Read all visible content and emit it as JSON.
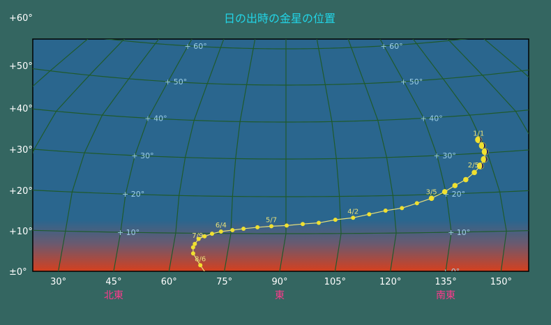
{
  "chart_data": {
    "type": "scatter",
    "title": "日の出時の金星の位置",
    "xlim": [
      24,
      158
    ],
    "ylim": [
      0,
      57
    ],
    "y_ticks": [
      "+60°",
      "+50°",
      "+40°",
      "+30°",
      "+20°",
      "+10°",
      "±0°"
    ],
    "x_ticks": [
      "30°",
      "45°",
      "60°",
      "75°",
      "90°",
      "105°",
      "120°",
      "135°",
      "150°"
    ],
    "directions": [
      {
        "label": "北東",
        "az": 45
      },
      {
        "label": "東",
        "az": 90
      },
      {
        "label": "南東",
        "az": 135
      }
    ],
    "grid_altitude_labels": [
      "+ 60°",
      "+ 50°",
      "+ 40°",
      "+ 30°",
      "+ 20°",
      "+ 10°",
      "+ 0°"
    ],
    "grid": true,
    "series": [
      {
        "points": [
          {
            "az": 149.2,
            "alt": 33.5
          },
          {
            "az": 149.5,
            "alt": 31.9
          },
          {
            "az": 149.5,
            "alt": 30.3
          },
          {
            "az": 148.5,
            "alt": 28.4
          },
          {
            "az": 146.8,
            "alt": 26.8
          },
          {
            "az": 144.5,
            "alt": 25.2
          },
          {
            "az": 141.5,
            "alt": 23.5
          },
          {
            "az": 138.0,
            "alt": 22.1
          },
          {
            "az": 134.7,
            "alt": 20.6
          },
          {
            "az": 130.7,
            "alt": 19.0
          },
          {
            "az": 126.5,
            "alt": 17.8
          },
          {
            "az": 122.2,
            "alt": 16.6
          },
          {
            "az": 117.6,
            "alt": 16.0
          },
          {
            "az": 113.0,
            "alt": 15.1
          },
          {
            "az": 108.5,
            "alt": 14.2
          },
          {
            "az": 103.6,
            "alt": 13.7
          },
          {
            "az": 99.0,
            "alt": 12.9
          },
          {
            "az": 94.6,
            "alt": 12.6
          },
          {
            "az": 90.2,
            "alt": 12.2
          },
          {
            "az": 86.0,
            "alt": 12.0
          },
          {
            "az": 82.2,
            "alt": 11.7
          },
          {
            "az": 78.4,
            "alt": 11.3
          },
          {
            "az": 75.4,
            "alt": 10.9
          },
          {
            "az": 72.3,
            "alt": 10.5
          },
          {
            "az": 69.9,
            "alt": 9.9
          },
          {
            "az": 68.0,
            "alt": 9.2
          },
          {
            "az": 66.5,
            "alt": 8.5
          },
          {
            "az": 65.7,
            "alt": 7.2
          },
          {
            "az": 65.4,
            "alt": 6.3
          },
          {
            "az": 65.7,
            "alt": 4.7
          },
          {
            "az": 68.2,
            "alt": 1.6
          },
          {
            "az": 69.6,
            "alt": 0.0
          }
        ],
        "crescent_count": 5,
        "date_labels": [
          {
            "text": "1/1",
            "index": 0,
            "place": "above"
          },
          {
            "text": "2/5",
            "index": 4,
            "place": "left"
          },
          {
            "text": "3/5",
            "index": 9,
            "place": "above"
          },
          {
            "text": "4/2",
            "index": 14,
            "place": "above"
          },
          {
            "text": "5/7",
            "index": 19,
            "place": "above"
          },
          {
            "text": "6/4",
            "index": 23,
            "place": "above"
          },
          {
            "text": "7/9",
            "index": 25,
            "place": "left"
          },
          {
            "text": "8/6",
            "index": 30,
            "place": "above"
          }
        ]
      }
    ]
  },
  "colors": {
    "background": "#346661",
    "sky": "#2a668e",
    "horizon_glow": "#d6401e",
    "grid": "#1f5a2c",
    "venus": "#f0e030",
    "path": "#e8e07a"
  }
}
